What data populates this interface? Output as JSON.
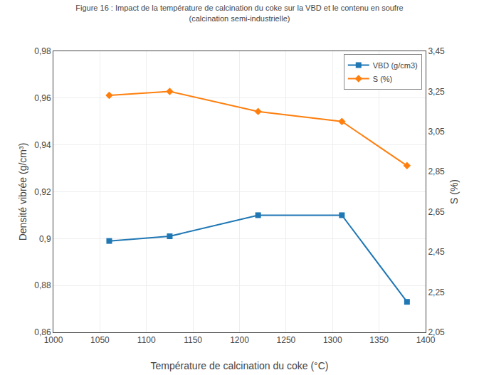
{
  "chart_data": {
    "type": "line",
    "title": "Figure 16 : Impact de la température de calcination du coke sur la VBD et le contenu en soufre\n(calcination semi-industrielle)",
    "xlabel": "Température de calcination du coke (°C)",
    "ylabel": "Densité vibrée (g/cm³)",
    "y2label": "S (%)",
    "x": [
      1060,
      1125,
      1220,
      1310,
      1380
    ],
    "series": [
      {
        "name": "VBD (g/cm3)",
        "values": [
          0.899,
          0.901,
          0.91,
          0.91,
          0.873
        ],
        "marker": "square"
      },
      {
        "name": "S (%)",
        "values": [
          3.23,
          3.25,
          3.15,
          3.1,
          2.88
        ],
        "marker": "diamond",
        "axis": "y2"
      }
    ],
    "xlim": [
      1000,
      1400
    ],
    "xticks": [
      1000,
      1050,
      1100,
      1150,
      1200,
      1250,
      1300,
      1350,
      1400
    ],
    "ylim": [
      0.86,
      0.98
    ],
    "yticks": [
      {
        "value": 0.86,
        "label": "0,86"
      },
      {
        "value": 0.88,
        "label": "0,88"
      },
      {
        "value": 0.9,
        "label": "0,9"
      },
      {
        "value": 0.92,
        "label": "0,92"
      },
      {
        "value": 0.94,
        "label": "0,94"
      },
      {
        "value": 0.96,
        "label": "0,96"
      },
      {
        "value": 0.98,
        "label": "0,98"
      }
    ],
    "y2lim": [
      2.05,
      3.45
    ],
    "y2ticks": [
      {
        "value": 2.05,
        "label": "2,05"
      },
      {
        "value": 2.25,
        "label": "2,25"
      },
      {
        "value": 2.45,
        "label": "2,45"
      },
      {
        "value": 2.65,
        "label": "2,65"
      },
      {
        "value": 2.85,
        "label": "2,85"
      },
      {
        "value": 3.05,
        "label": "3,05"
      },
      {
        "value": 3.25,
        "label": "3,25"
      },
      {
        "value": 3.45,
        "label": "3,45"
      }
    ],
    "grid": true,
    "legend": "upper right"
  }
}
